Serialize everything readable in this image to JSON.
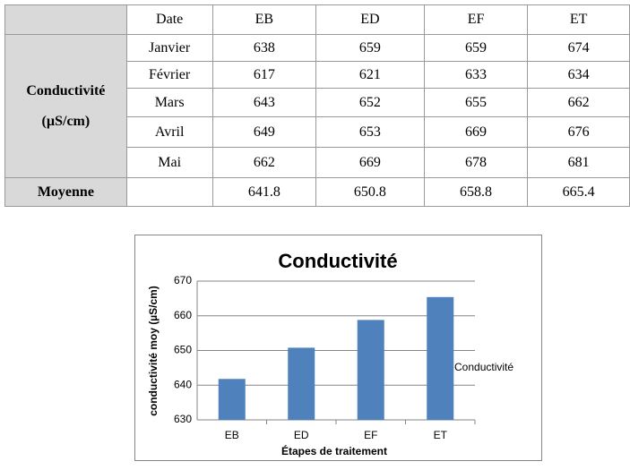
{
  "table": {
    "header": [
      "Date",
      "EB",
      "ED",
      "EF",
      "ET"
    ],
    "group_label": "Conductivité",
    "group_unit": "(µS/cm)",
    "rows": [
      [
        "Janvier",
        638,
        659,
        659,
        674
      ],
      [
        "Février",
        617,
        621,
        633,
        634
      ],
      [
        "Mars",
        643,
        652,
        655,
        662
      ],
      [
        "Avril",
        649,
        653,
        669,
        676
      ],
      [
        "Mai",
        662,
        669,
        678,
        681
      ]
    ],
    "footer": {
      "label": "Moyenne",
      "values": [
        641.8,
        650.8,
        658.8,
        665.4
      ]
    }
  },
  "chart_data": {
    "type": "bar",
    "title": "Conductivité",
    "categories": [
      "EB",
      "ED",
      "EF",
      "ET"
    ],
    "series": [
      {
        "name": "Conductivité",
        "color": "#4f81bd",
        "values": [
          641.8,
          650.8,
          658.8,
          665.4
        ]
      }
    ],
    "ylim": [
      630,
      670
    ],
    "yticks": [
      630,
      640,
      650,
      660,
      670
    ],
    "grid": true,
    "x_label": "Étapes de traitement",
    "y_label": "conductivité moy (µS/cm)",
    "legend": "right"
  }
}
